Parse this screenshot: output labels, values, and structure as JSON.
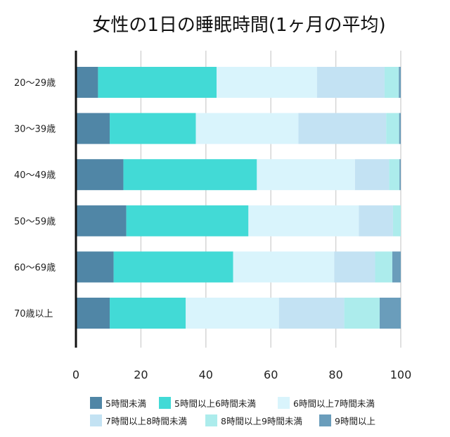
{
  "chart_data": {
    "type": "bar",
    "orientation": "horizontal",
    "stacked": true,
    "title": "女性の1日の睡眠時間(1ヶ月の平均)",
    "xlabel": "",
    "ylabel": "",
    "xlim": [
      0,
      100
    ],
    "xticks": [
      0,
      20,
      40,
      60,
      80,
      100
    ],
    "grid": true,
    "legend_position": "bottom",
    "categories": [
      "20〜29歳",
      "30〜39歳",
      "40〜49歳",
      "50〜59歳",
      "60〜69歳",
      "70歳以上"
    ],
    "series": [
      {
        "name": "5時間未満",
        "color": "#5086a6",
        "values": [
          6.8,
          10.4,
          14.6,
          15.5,
          11.6,
          10.4
        ]
      },
      {
        "name": "5時間以上6時間未満",
        "color": "#42dad6",
        "values": [
          36.5,
          26.5,
          41.1,
          37.6,
          36.8,
          23.4
        ]
      },
      {
        "name": "6時間以上7時間未満",
        "color": "#d9f4fc",
        "values": [
          30.9,
          31.6,
          30.2,
          34.0,
          31.1,
          28.7
        ]
      },
      {
        "name": "7時間以上8時間未満",
        "color": "#c3e2f3",
        "values": [
          20.8,
          27.0,
          10.5,
          10.5,
          12.6,
          20.1
        ]
      },
      {
        "name": "8時間以上9時間未満",
        "color": "#acecec",
        "values": [
          4.4,
          4.0,
          3.2,
          2.4,
          5.3,
          10.9
        ]
      },
      {
        "name": "9時間以上",
        "color": "#6a9dbb",
        "values": [
          0.6,
          0.5,
          0.4,
          0.0,
          2.6,
          6.5
        ]
      }
    ]
  }
}
